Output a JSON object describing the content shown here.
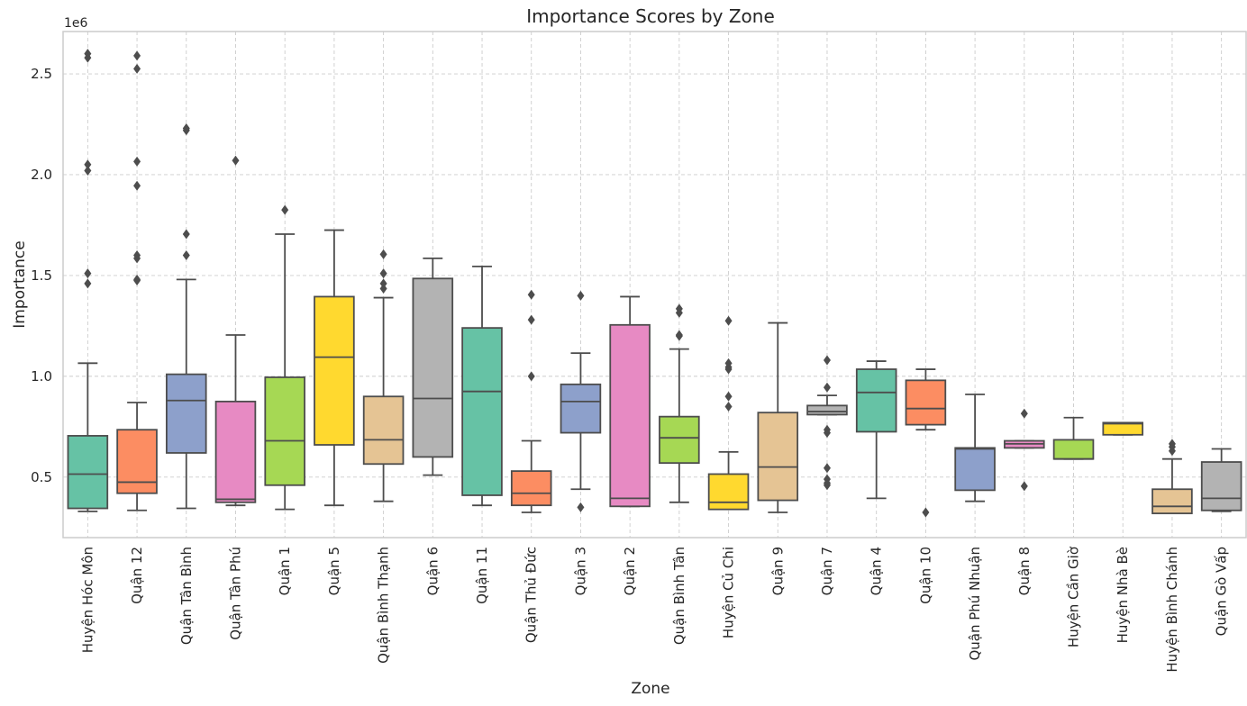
{
  "chart_data": {
    "type": "box",
    "title": "Importance Scores by Zone",
    "xlabel": "Zone",
    "ylabel": "Importance",
    "y_offset_label": "1e6",
    "y_ticks": [
      0.5,
      1.0,
      1.5,
      2.0,
      2.5
    ],
    "y_tick_labels": [
      "0.5",
      "1.0",
      "1.5",
      "2.0",
      "2.5"
    ],
    "ylim": [
      0.2,
      2.71
    ],
    "y_scale": 1000000,
    "grid": true,
    "palette": [
      "#66c2a5",
      "#fc8d62",
      "#8da0cb",
      "#e78ac3",
      "#a6d854",
      "#ffd92f",
      "#e5c494",
      "#b3b3b3"
    ],
    "boxes": [
      {
        "category": "Huyện Hóc Môn",
        "whisker_low": 0.33,
        "q1": 0.345,
        "median": 0.515,
        "q3": 0.705,
        "whisker_high": 1.065,
        "outliers": [
          1.46,
          1.51,
          2.02,
          2.05,
          2.58,
          2.6
        ]
      },
      {
        "category": "Quận 12",
        "whisker_low": 0.335,
        "q1": 0.42,
        "median": 0.475,
        "q3": 0.735,
        "whisker_high": 0.87,
        "outliers": [
          1.475,
          1.48,
          1.585,
          1.6,
          1.945,
          2.065,
          2.525,
          2.59
        ]
      },
      {
        "category": "Quận Tân Bình",
        "whisker_low": 0.345,
        "q1": 0.62,
        "median": 0.88,
        "q3": 1.01,
        "whisker_high": 1.48,
        "outliers": [
          1.6,
          1.705,
          2.22,
          2.23
        ]
      },
      {
        "category": "Quận Tân Phú",
        "whisker_low": 0.36,
        "q1": 0.375,
        "median": 0.39,
        "q3": 0.875,
        "whisker_high": 1.205,
        "outliers": [
          2.07
        ]
      },
      {
        "category": "Quận 1",
        "whisker_low": 0.34,
        "q1": 0.46,
        "median": 0.68,
        "q3": 0.995,
        "whisker_high": 1.705,
        "outliers": [
          1.825
        ]
      },
      {
        "category": "Quận 5",
        "whisker_low": 0.36,
        "q1": 0.66,
        "median": 1.095,
        "q3": 1.395,
        "whisker_high": 1.725,
        "outliers": []
      },
      {
        "category": "Quận Bình Thạnh",
        "whisker_low": 0.38,
        "q1": 0.565,
        "median": 0.685,
        "q3": 0.9,
        "whisker_high": 1.39,
        "outliers": [
          1.435,
          1.46,
          1.51,
          1.605
        ]
      },
      {
        "category": "Quận 6",
        "whisker_low": 0.51,
        "q1": 0.6,
        "median": 0.89,
        "q3": 1.485,
        "whisker_high": 1.585,
        "outliers": []
      },
      {
        "category": "Quận 11",
        "whisker_low": 0.36,
        "q1": 0.41,
        "median": 0.925,
        "q3": 1.24,
        "whisker_high": 1.545,
        "outliers": []
      },
      {
        "category": "Quận Thủ Đức",
        "whisker_low": 0.325,
        "q1": 0.36,
        "median": 0.42,
        "q3": 0.53,
        "whisker_high": 0.68,
        "outliers": [
          1.0,
          1.28,
          1.405
        ]
      },
      {
        "category": "Quận 3",
        "whisker_low": 0.44,
        "q1": 0.72,
        "median": 0.875,
        "q3": 0.96,
        "whisker_high": 1.115,
        "outliers": [
          0.35,
          1.4
        ]
      },
      {
        "category": "Quận 2",
        "whisker_low": 0.355,
        "q1": 0.355,
        "median": 0.395,
        "q3": 1.255,
        "whisker_high": 1.395,
        "outliers": []
      },
      {
        "category": "Quận Bình Tân",
        "whisker_low": 0.375,
        "q1": 0.57,
        "median": 0.695,
        "q3": 0.8,
        "whisker_high": 1.135,
        "outliers": [
          1.2,
          1.205,
          1.315,
          1.335
        ]
      },
      {
        "category": "Huyện Củ Chi",
        "whisker_low": 0.34,
        "q1": 0.34,
        "median": 0.375,
        "q3": 0.515,
        "whisker_high": 0.625,
        "outliers": [
          0.85,
          0.9,
          1.035,
          1.045,
          1.065,
          1.275
        ]
      },
      {
        "category": "Quận 9",
        "whisker_low": 0.325,
        "q1": 0.385,
        "median": 0.55,
        "q3": 0.82,
        "whisker_high": 1.265,
        "outliers": []
      },
      {
        "category": "Quận 7",
        "whisker_low": 0.81,
        "q1": 0.81,
        "median": 0.825,
        "q3": 0.855,
        "whisker_high": 0.905,
        "outliers": [
          0.46,
          0.47,
          0.49,
          0.545,
          0.72,
          0.735,
          0.945,
          1.08
        ]
      },
      {
        "category": "Quận 4",
        "whisker_low": 0.395,
        "q1": 0.725,
        "median": 0.92,
        "q3": 1.035,
        "whisker_high": 1.075,
        "outliers": []
      },
      {
        "category": "Quận 10",
        "whisker_low": 0.735,
        "q1": 0.76,
        "median": 0.84,
        "q3": 0.98,
        "whisker_high": 1.035,
        "outliers": [
          0.325
        ]
      },
      {
        "category": "Quận Phú Nhuận",
        "whisker_low": 0.38,
        "q1": 0.435,
        "median": 0.64,
        "q3": 0.645,
        "whisker_high": 0.91,
        "outliers": []
      },
      {
        "category": "Quận 8",
        "whisker_low": 0.645,
        "q1": 0.645,
        "median": 0.665,
        "q3": 0.68,
        "whisker_high": 0.68,
        "outliers": [
          0.455,
          0.815
        ]
      },
      {
        "category": "Huyện Cần Giờ",
        "whisker_low": 0.59,
        "q1": 0.59,
        "median": 0.59,
        "q3": 0.685,
        "whisker_high": 0.795,
        "outliers": []
      },
      {
        "category": "Huyện Nhà Bè",
        "whisker_low": 0.71,
        "q1": 0.71,
        "median": 0.765,
        "q3": 0.77,
        "whisker_high": 0.77,
        "outliers": []
      },
      {
        "category": "Huyện Bình Chánh",
        "whisker_low": 0.32,
        "q1": 0.32,
        "median": 0.355,
        "q3": 0.44,
        "whisker_high": 0.59,
        "outliers": [
          0.63,
          0.65,
          0.665
        ]
      },
      {
        "category": "Quận Gò Vấp",
        "whisker_low": 0.33,
        "q1": 0.335,
        "median": 0.395,
        "q3": 0.575,
        "whisker_high": 0.64,
        "outliers": []
      }
    ]
  }
}
